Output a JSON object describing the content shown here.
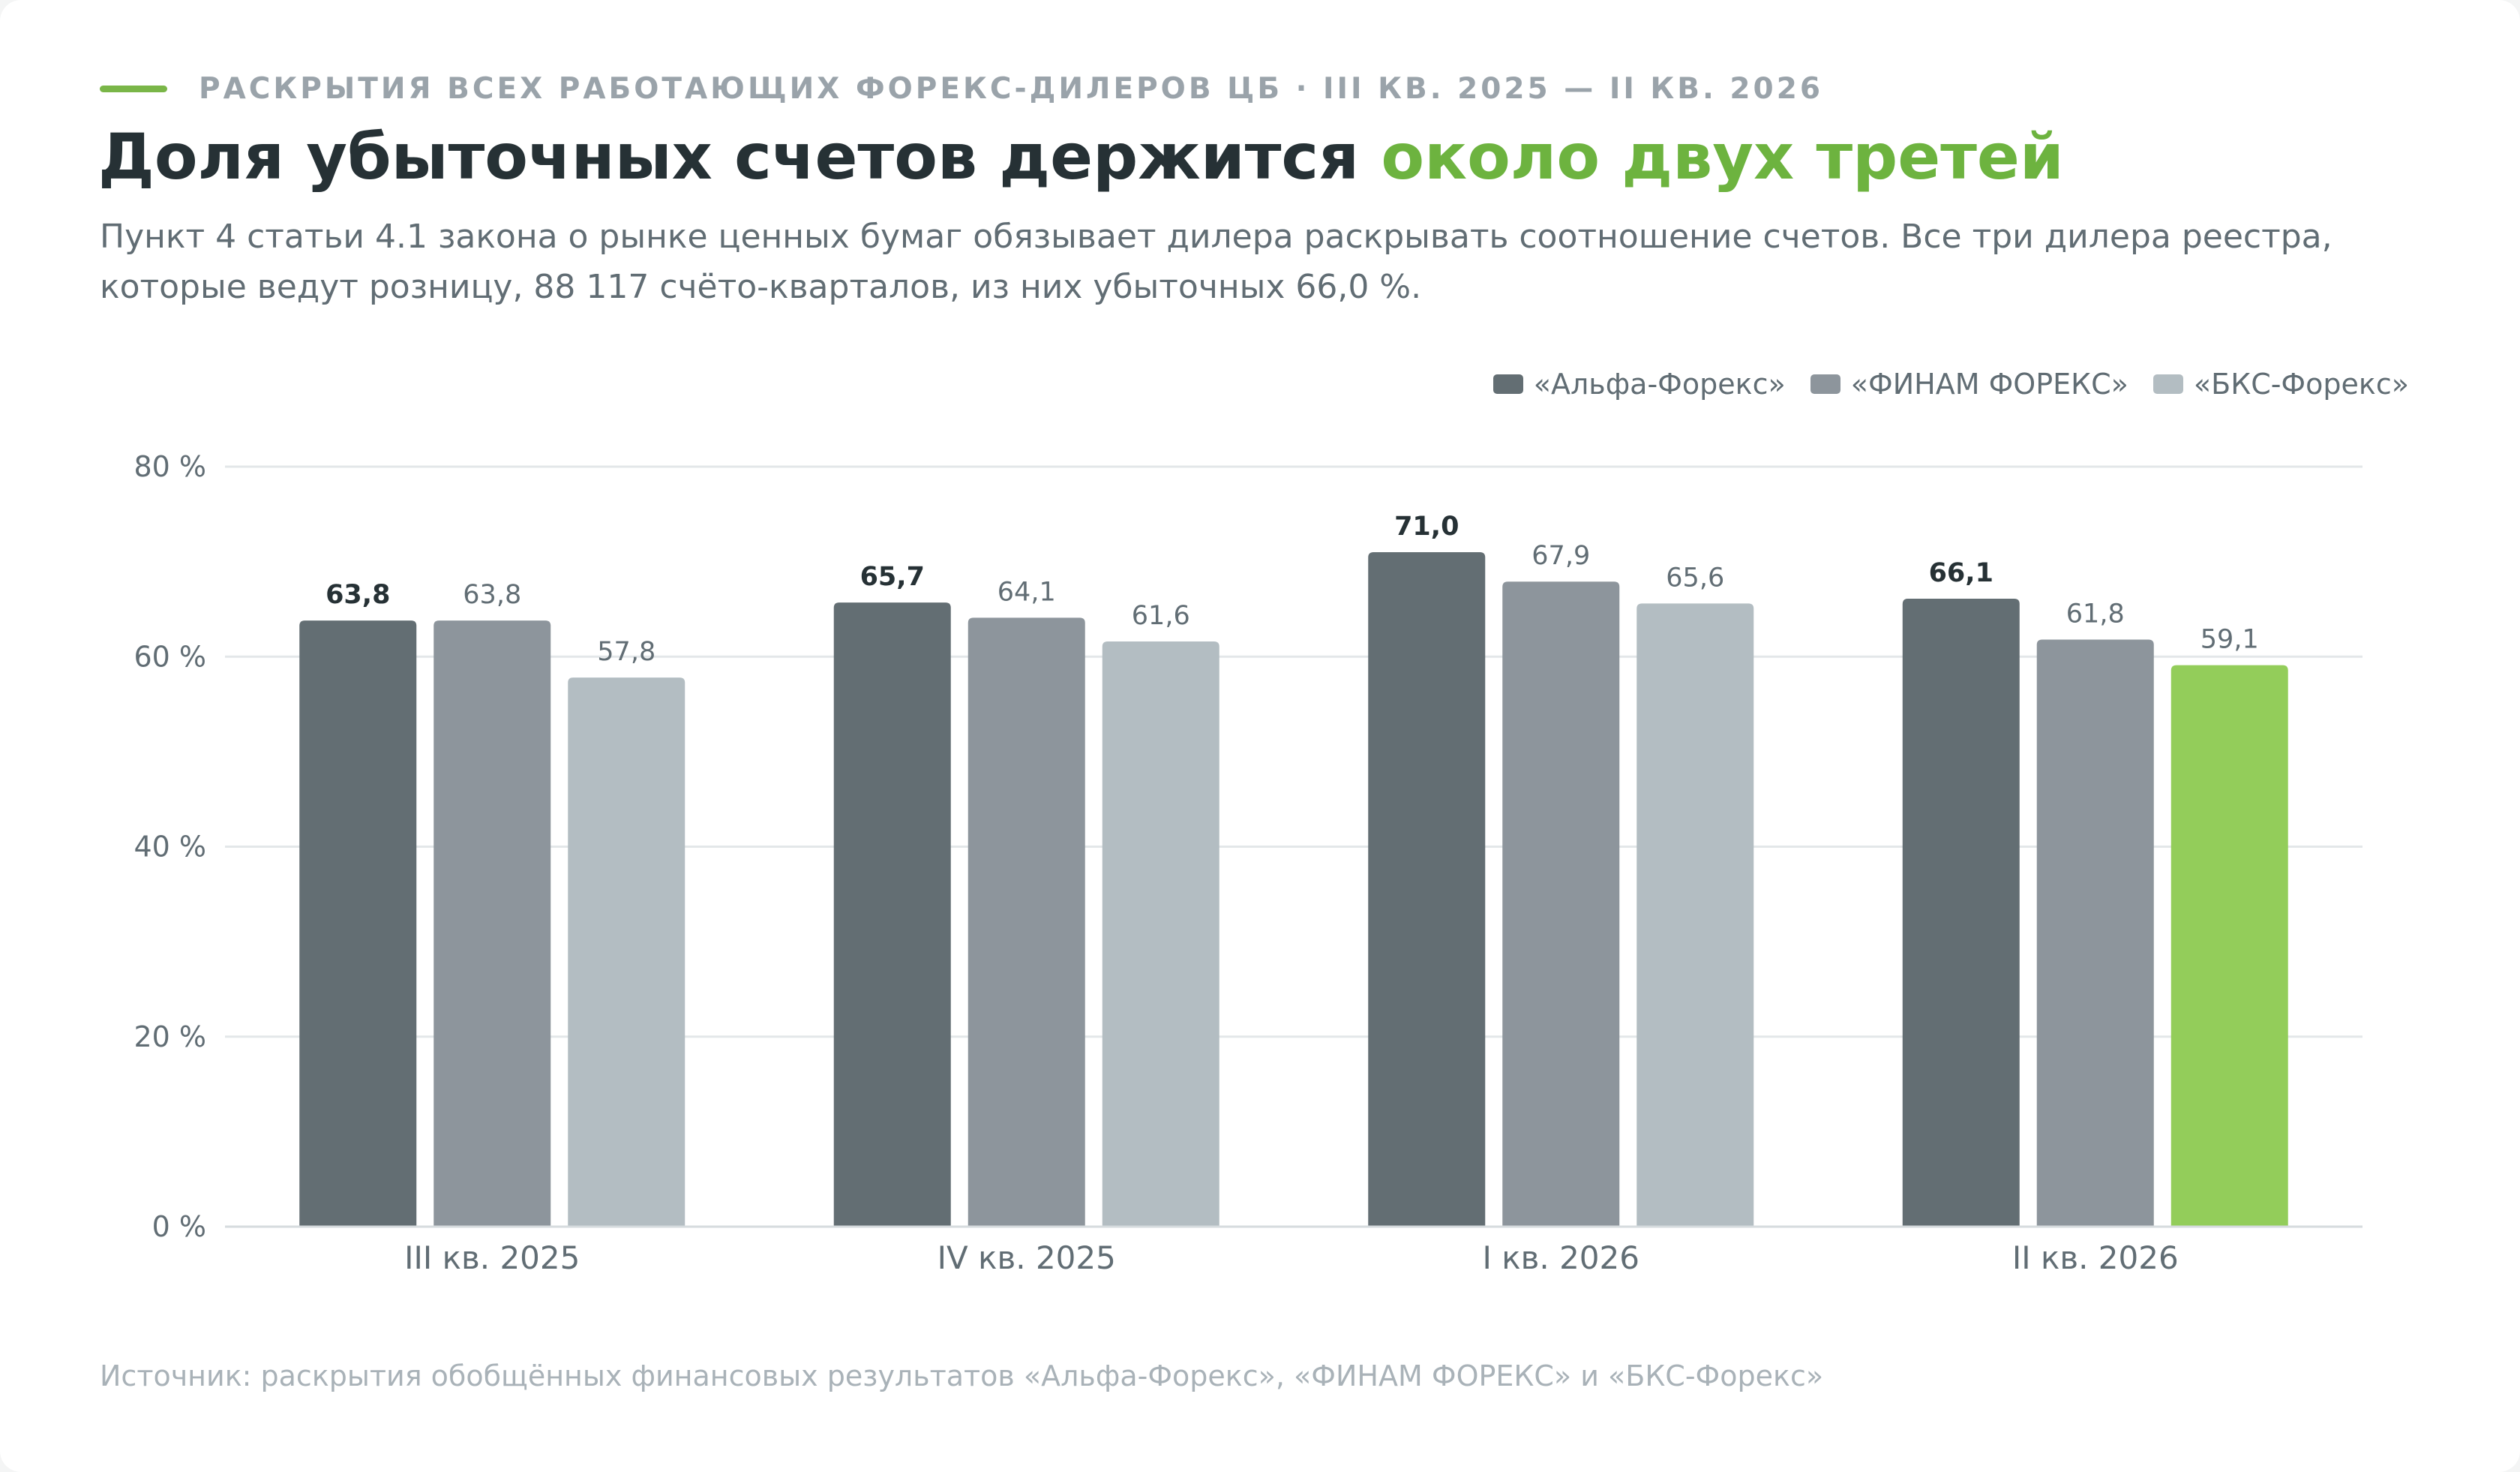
{
  "header": {
    "eyebrow": "РАСКРЫТИЯ ВСЕХ РАБОТАЮЩИХ ФОРЕКС-ДИЛЕРОВ ЦБ · III КВ. 2025 — II КВ. 2026",
    "title_main": "Доля убыточных счетов держится ",
    "title_accent": "около двух третей",
    "subtitle": "Пункт 4 статьи 4.1 закона о рынке ценных бумаг обязывает дилера раскрывать соотношение счетов. Все три дилера реестра, которые ведут розницу, 88 117 счёто-кварталов, из них убыточных 66,0 %."
  },
  "colors": {
    "accent": "#6db33f",
    "highlight_bar": "#93cd5a",
    "series": [
      "#636e73",
      "#8d959c",
      "#b3bdc2"
    ],
    "grid": "#e3e7e9",
    "axis_text": "#616d74",
    "label_bold": "#263135"
  },
  "chart_data": {
    "type": "bar",
    "categories": [
      "III кв. 2025",
      "IV кв. 2025",
      "I кв. 2026",
      "II кв. 2026"
    ],
    "series": [
      {
        "name": "«Альфа-Форекс»",
        "values": [
          63.8,
          65.7,
          71.0,
          66.1
        ],
        "labels": [
          "63,8",
          "65,7",
          "71,0",
          "66,1"
        ]
      },
      {
        "name": "«ФИНАМ ФОРЕКС»",
        "values": [
          63.8,
          64.1,
          67.9,
          61.8
        ],
        "labels": [
          "63,8",
          "64,1",
          "67,9",
          "61,8"
        ]
      },
      {
        "name": "«БКС-Форекс»",
        "values": [
          57.8,
          61.6,
          65.6,
          59.1
        ],
        "labels": [
          "57,8",
          "61,6",
          "65,6",
          "59,1"
        ]
      }
    ],
    "highlight": {
      "series": 2,
      "category": 3
    },
    "ylim": [
      0,
      80
    ],
    "yticks": [
      0,
      20,
      40,
      60,
      80
    ],
    "ytick_labels": [
      "0 %",
      "20 %",
      "40 %",
      "60 %",
      "80 %"
    ],
    "grid": true,
    "legend_position": "top-right",
    "xlabel": "",
    "ylabel": ""
  },
  "footer": {
    "source": "Источник: раскрытия обобщённых финансовых результатов «Альфа-Форекс», «ФИНАМ ФОРЕКС» и «БКС-Форекс»"
  }
}
